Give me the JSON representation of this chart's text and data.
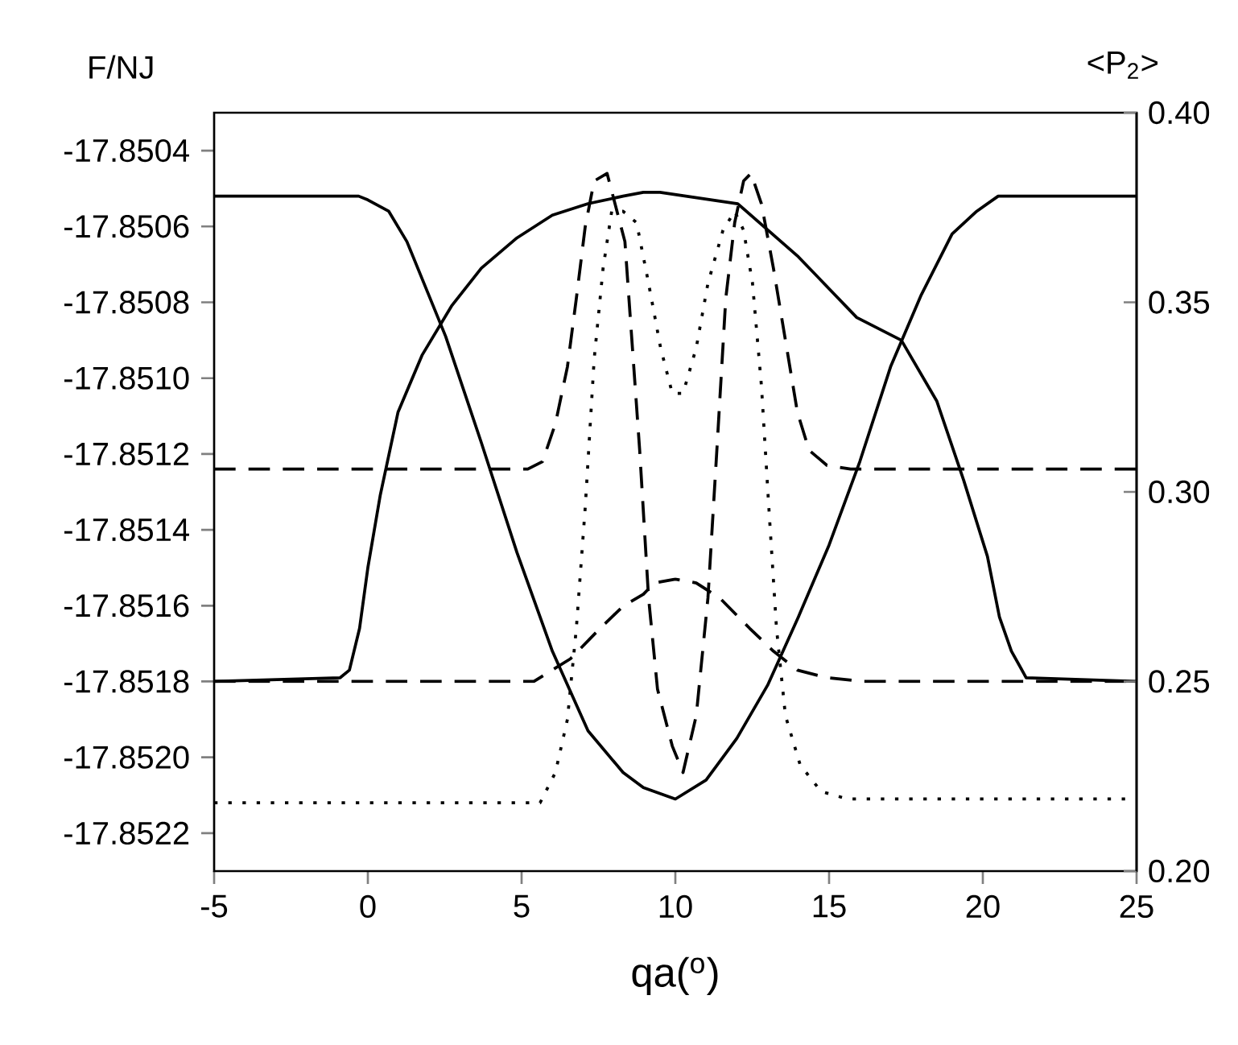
{
  "chart_data": {
    "type": "line",
    "xlabel": "qa($^{o}$)",
    "ylabel": "F/NJ",
    "y2label": "<P$_{2}$>",
    "xlim": [
      -5,
      25
    ],
    "xticks": [
      -5,
      0,
      5,
      10,
      15,
      20,
      25
    ],
    "ylim": [
      -17.8523,
      -17.8503
    ],
    "yticks": [
      -17.8522,
      {
        "value": -17.852,
        "label": "-17.8520"
      },
      -17.8518,
      -17.8516,
      -17.8514,
      -17.8512,
      {
        "value": -17.851,
        "label": "-17.8510"
      },
      -17.8508,
      -17.8506,
      -17.8504
    ],
    "y2lim": [
      0.2,
      0.4
    ],
    "y2ticks": [
      {
        "value": 0.2,
        "label": "0.20"
      },
      0.25,
      {
        "value": 0.3,
        "label": "0.30"
      },
      0.35,
      {
        "value": 0.4,
        "label": "0.40"
      }
    ],
    "series": [
      {
        "color": "#000000",
        "line_style": "solid",
        "axis": "y2",
        "x": [
          -5,
          -0.3,
          0,
          0.68,
          1.27,
          2.53,
          3.69,
          4.85,
          6.0,
          7.16,
          8.3,
          8.96,
          10,
          11,
          12,
          13,
          14,
          15,
          16,
          17,
          18,
          19,
          19.8,
          20.5,
          25
        ],
        "values": [
          0.378,
          0.378,
          0.377,
          0.374,
          0.366,
          0.341,
          0.313,
          0.284,
          0.258,
          0.237,
          0.226,
          0.222,
          0.219,
          0.224,
          0.235,
          0.249,
          0.267,
          0.286,
          0.308,
          0.333,
          0.352,
          0.368,
          0.374,
          0.378,
          0.378
        ]
      },
      {
        "color": "#000000",
        "line_style": "solid",
        "x": [
          -5,
          -0.9,
          -0.6,
          -0.27,
          0,
          0.4,
          0.98,
          1.76,
          2.72,
          3.69,
          4.85,
          6.0,
          7.16,
          8.3,
          8.96,
          9.5,
          12.03,
          14.0,
          15.9,
          17.35,
          18.5,
          19.38,
          20.15,
          20.54,
          20.93,
          21.41,
          25
        ],
        "values": [
          -17.8518,
          -17.85179,
          -17.85177,
          -17.85166,
          -17.8515,
          -17.85131,
          -17.85109,
          -17.85094,
          -17.85081,
          -17.85071,
          -17.85063,
          -17.85057,
          -17.85054,
          -17.85052,
          -17.85051,
          -17.85051,
          -17.85054,
          -17.85068,
          -17.85084,
          -17.8509,
          -17.85106,
          -17.85127,
          -17.85147,
          -17.85163,
          -17.85172,
          -17.85179,
          -17.8518
        ]
      },
      {
        "color": "#000000",
        "line_style": "dashed",
        "x": [
          -5,
          5.2,
          5.68,
          6.1,
          6.49,
          6.78,
          7.07,
          7.36,
          7.78,
          8.36,
          8.84,
          9.13,
          9.42,
          9.9,
          10.25,
          10.68,
          11.06,
          11.35,
          11.64,
          11.93,
          12.22,
          12.46,
          12.8,
          13.19,
          13.58,
          13.97,
          14.35,
          14.93,
          15.7,
          25
        ],
        "values": [
          -17.85124,
          -17.85124,
          -17.85122,
          -17.85112,
          -17.85097,
          -17.85079,
          -17.8506,
          -17.85048,
          -17.85046,
          -17.85064,
          -17.85119,
          -17.85158,
          -17.85182,
          -17.85197,
          -17.85204,
          -17.85189,
          -17.85158,
          -17.85119,
          -17.85079,
          -17.85059,
          -17.85048,
          -17.85046,
          -17.85054,
          -17.85071,
          -17.8509,
          -17.85109,
          -17.85119,
          -17.85123,
          -17.85124,
          -17.85124
        ]
      },
      {
        "color": "#000000",
        "line_style": "dashed",
        "x": [
          -5,
          5.4,
          6.59,
          7.55,
          8.32,
          8.96,
          9.32,
          10,
          10.68,
          11.45,
          12.42,
          13.19,
          13.97,
          14.93,
          16.1,
          25
        ],
        "values": [
          -17.8518,
          -17.8518,
          -17.85174,
          -17.85166,
          -17.8516,
          -17.85157,
          -17.85154,
          -17.85153,
          -17.85154,
          -17.85158,
          -17.85166,
          -17.85172,
          -17.85177,
          -17.85179,
          -17.8518,
          -17.8518
        ]
      },
      {
        "color": "#000000",
        "line_style": "dotted",
        "x": [
          -5,
          5.6,
          6.1,
          6.49,
          6.78,
          7.07,
          7.36,
          7.65,
          7.93,
          8.3,
          8.74,
          9.13,
          9.52,
          9.9,
          10.25,
          10.68,
          11.06,
          11.55,
          11.93,
          12.22,
          12.51,
          12.8,
          13.04,
          13.29,
          13.58,
          14.06,
          14.74,
          15.61,
          25
        ],
        "values": [
          -17.85212,
          -17.85212,
          -17.85204,
          -17.8519,
          -17.85166,
          -17.85134,
          -17.85095,
          -17.85071,
          -17.85056,
          -17.85056,
          -17.85059,
          -17.85075,
          -17.85092,
          -17.85104,
          -17.85104,
          -17.85092,
          -17.85075,
          -17.85061,
          -17.85056,
          -17.85061,
          -17.85075,
          -17.85102,
          -17.85134,
          -17.85166,
          -17.85189,
          -17.85202,
          -17.85209,
          -17.85211,
          -17.85211
        ]
      }
    ]
  }
}
